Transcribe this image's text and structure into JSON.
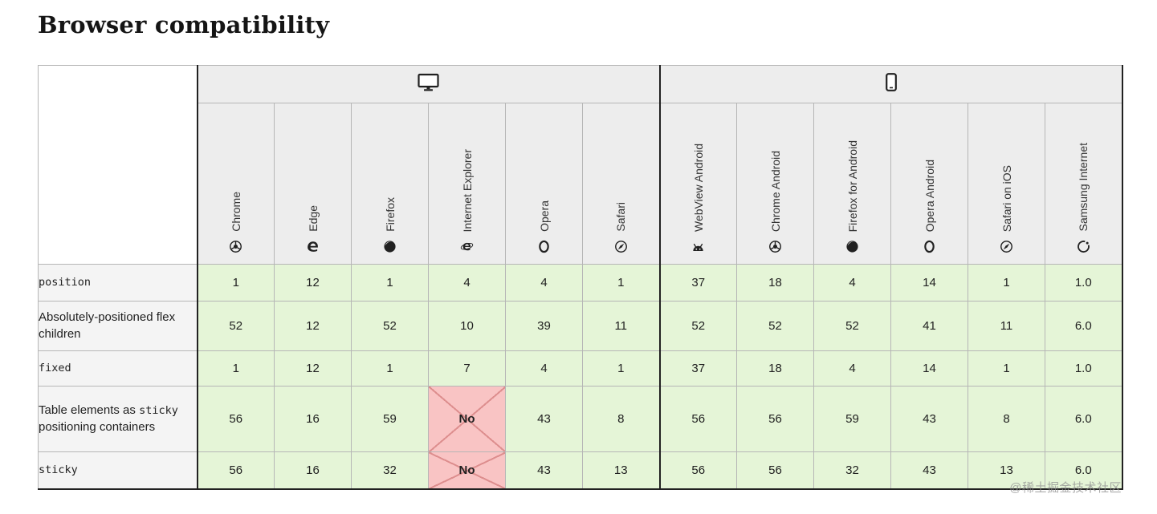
{
  "page": {
    "title": "Browser compatibility",
    "watermark": "@稀土掘金技术社区"
  },
  "colors": {
    "support_yes_bg": "#e5f5d7",
    "support_no_bg": "#f9c4c4",
    "no_cross": "#dd8e8e",
    "header_bg": "#ededed",
    "feature_bg": "#f4f4f4",
    "border_dark": "#212121",
    "border_light": "#b6b6b6"
  },
  "table": {
    "platforms": [
      {
        "name": "desktop",
        "icon": "desktop-icon",
        "span": 6
      },
      {
        "name": "mobile",
        "icon": "mobile-icon",
        "span": 6
      }
    ],
    "browsers": [
      {
        "label": "Chrome",
        "icon": "chrome-icon",
        "group_start": true
      },
      {
        "label": "Edge",
        "icon": "edge-icon"
      },
      {
        "label": "Firefox",
        "icon": "firefox-icon"
      },
      {
        "label": "Internet Explorer",
        "icon": "ie-icon"
      },
      {
        "label": "Opera",
        "icon": "opera-icon"
      },
      {
        "label": "Safari",
        "icon": "safari-icon"
      },
      {
        "label": "WebView Android",
        "icon": "webview-android-icon",
        "group_start": true
      },
      {
        "label": "Chrome Android",
        "icon": "chrome-icon"
      },
      {
        "label": "Firefox for Android",
        "icon": "firefox-icon"
      },
      {
        "label": "Opera Android",
        "icon": "opera-icon"
      },
      {
        "label": "Safari on iOS",
        "icon": "safari-icon"
      },
      {
        "label": "Samsung Internet",
        "icon": "samsung-icon"
      }
    ],
    "rows": [
      {
        "feature": [
          {
            "text": "position",
            "code": true
          }
        ],
        "cells": [
          {
            "value": "1",
            "support": "yes"
          },
          {
            "value": "12",
            "support": "yes"
          },
          {
            "value": "1",
            "support": "yes"
          },
          {
            "value": "4",
            "support": "yes"
          },
          {
            "value": "4",
            "support": "yes"
          },
          {
            "value": "1",
            "support": "yes"
          },
          {
            "value": "37",
            "support": "yes"
          },
          {
            "value": "18",
            "support": "yes"
          },
          {
            "value": "4",
            "support": "yes"
          },
          {
            "value": "14",
            "support": "yes"
          },
          {
            "value": "1",
            "support": "yes"
          },
          {
            "value": "1.0",
            "support": "yes"
          }
        ]
      },
      {
        "feature": [
          {
            "text": "Absolutely-positioned flex children",
            "code": false
          }
        ],
        "cells": [
          {
            "value": "52",
            "support": "yes"
          },
          {
            "value": "12",
            "support": "yes"
          },
          {
            "value": "52",
            "support": "yes"
          },
          {
            "value": "10",
            "support": "yes"
          },
          {
            "value": "39",
            "support": "yes"
          },
          {
            "value": "11",
            "support": "yes"
          },
          {
            "value": "52",
            "support": "yes"
          },
          {
            "value": "52",
            "support": "yes"
          },
          {
            "value": "52",
            "support": "yes"
          },
          {
            "value": "41",
            "support": "yes"
          },
          {
            "value": "11",
            "support": "yes"
          },
          {
            "value": "6.0",
            "support": "yes"
          }
        ]
      },
      {
        "feature": [
          {
            "text": "fixed",
            "code": true
          }
        ],
        "cells": [
          {
            "value": "1",
            "support": "yes"
          },
          {
            "value": "12",
            "support": "yes"
          },
          {
            "value": "1",
            "support": "yes"
          },
          {
            "value": "7",
            "support": "yes"
          },
          {
            "value": "4",
            "support": "yes"
          },
          {
            "value": "1",
            "support": "yes"
          },
          {
            "value": "37",
            "support": "yes"
          },
          {
            "value": "18",
            "support": "yes"
          },
          {
            "value": "4",
            "support": "yes"
          },
          {
            "value": "14",
            "support": "yes"
          },
          {
            "value": "1",
            "support": "yes"
          },
          {
            "value": "1.0",
            "support": "yes"
          }
        ]
      },
      {
        "feature": [
          {
            "text": "Table elements as ",
            "code": false
          },
          {
            "text": "sticky",
            "code": true
          },
          {
            "text": " positioning containers",
            "code": false
          }
        ],
        "cells": [
          {
            "value": "56",
            "support": "yes"
          },
          {
            "value": "16",
            "support": "yes"
          },
          {
            "value": "59",
            "support": "yes"
          },
          {
            "value": "No",
            "support": "no"
          },
          {
            "value": "43",
            "support": "yes"
          },
          {
            "value": "8",
            "support": "yes"
          },
          {
            "value": "56",
            "support": "yes"
          },
          {
            "value": "56",
            "support": "yes"
          },
          {
            "value": "59",
            "support": "yes"
          },
          {
            "value": "43",
            "support": "yes"
          },
          {
            "value": "8",
            "support": "yes"
          },
          {
            "value": "6.0",
            "support": "yes"
          }
        ]
      },
      {
        "feature": [
          {
            "text": "sticky",
            "code": true
          }
        ],
        "cells": [
          {
            "value": "56",
            "support": "yes"
          },
          {
            "value": "16",
            "support": "yes"
          },
          {
            "value": "32",
            "support": "yes"
          },
          {
            "value": "No",
            "support": "no"
          },
          {
            "value": "43",
            "support": "yes"
          },
          {
            "value": "13",
            "support": "yes"
          },
          {
            "value": "56",
            "support": "yes"
          },
          {
            "value": "56",
            "support": "yes"
          },
          {
            "value": "32",
            "support": "yes"
          },
          {
            "value": "43",
            "support": "yes"
          },
          {
            "value": "13",
            "support": "yes"
          },
          {
            "value": "6.0",
            "support": "yes"
          }
        ]
      }
    ]
  }
}
